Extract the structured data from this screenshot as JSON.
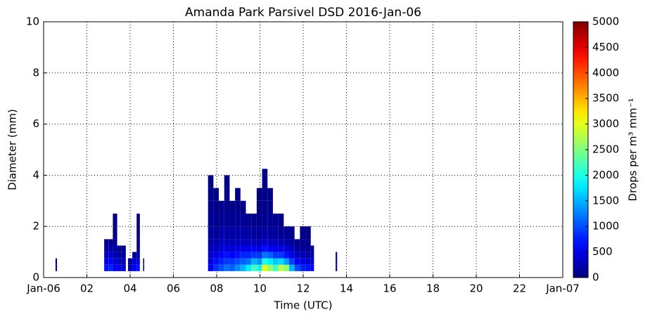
{
  "chart_data": {
    "type": "heatmap",
    "title": "Amanda Park Parsivel DSD 2016-Jan-06",
    "x_label": "Time (UTC)",
    "y_label": "Diameter (mm)",
    "colorbar_label": "Drops per m³ mm⁻¹",
    "xlim": [
      0,
      24
    ],
    "xticks": [
      {
        "value": 0,
        "label": "Jan-06"
      },
      {
        "value": 2,
        "label": "02"
      },
      {
        "value": 4,
        "label": "04"
      },
      {
        "value": 6,
        "label": "06"
      },
      {
        "value": 8,
        "label": "08"
      },
      {
        "value": 10,
        "label": "10"
      },
      {
        "value": 12,
        "label": "12"
      },
      {
        "value": 14,
        "label": "14"
      },
      {
        "value": 16,
        "label": "16"
      },
      {
        "value": 18,
        "label": "18"
      },
      {
        "value": 20,
        "label": "20"
      },
      {
        "value": 22,
        "label": "22"
      },
      {
        "value": 24,
        "label": "Jan-07"
      }
    ],
    "ylim": [
      0,
      10
    ],
    "yticks": [
      0,
      2,
      4,
      6,
      8,
      10
    ],
    "clim": [
      0,
      5000
    ],
    "cticks": [
      0,
      500,
      1000,
      1500,
      2000,
      2500,
      3000,
      3500,
      4000,
      4500,
      5000
    ],
    "colormap": "jet",
    "grid": true,
    "y_bins": [
      0.25,
      0.5,
      0.75,
      1,
      1.25,
      1.5,
      2,
      2.5,
      3,
      3.5,
      4,
      4.25
    ],
    "columns": [
      {
        "start": 0.55,
        "end": 0.62,
        "values": [
          150,
          60,
          null,
          null,
          null,
          null,
          null,
          null,
          null,
          null,
          null
        ]
      },
      {
        "start": 2.8,
        "end": 3.0,
        "values": [
          700,
          500,
          300,
          150,
          60,
          null,
          null,
          null,
          null,
          null,
          null
        ]
      },
      {
        "start": 3.0,
        "end": 3.2,
        "values": [
          800,
          600,
          400,
          200,
          80,
          null,
          null,
          null,
          null,
          null,
          null
        ]
      },
      {
        "start": 3.2,
        "end": 3.4,
        "values": [
          600,
          400,
          250,
          150,
          80,
          50,
          40,
          null,
          null,
          null,
          null
        ]
      },
      {
        "start": 3.4,
        "end": 3.6,
        "values": [
          500,
          300,
          150,
          80,
          null,
          null,
          null,
          null,
          null,
          null,
          null
        ]
      },
      {
        "start": 3.6,
        "end": 3.8,
        "values": [
          400,
          300,
          150,
          60,
          null,
          null,
          null,
          null,
          null,
          null,
          null
        ]
      },
      {
        "start": 3.9,
        "end": 4.1,
        "values": [
          300,
          150,
          null,
          null,
          null,
          null,
          null,
          null,
          null,
          null,
          null
        ]
      },
      {
        "start": 4.1,
        "end": 4.3,
        "values": [
          600,
          400,
          100,
          null,
          null,
          null,
          null,
          null,
          null,
          null,
          null
        ]
      },
      {
        "start": 4.3,
        "end": 4.45,
        "values": [
          700,
          500,
          200,
          100,
          60,
          40,
          30,
          null,
          null,
          null,
          null
        ]
      },
      {
        "start": 4.6,
        "end": 4.65,
        "values": [
          100,
          40,
          null,
          null,
          null,
          null,
          null,
          null,
          null,
          null,
          null
        ]
      },
      {
        "start": 7.6,
        "end": 7.85,
        "values": [
          600,
          500,
          400,
          300,
          200,
          150,
          100,
          60,
          40,
          30,
          null
        ]
      },
      {
        "start": 7.85,
        "end": 8.1,
        "values": [
          900,
          700,
          500,
          350,
          250,
          150,
          100,
          60,
          40,
          null,
          null
        ]
      },
      {
        "start": 8.1,
        "end": 8.35,
        "values": [
          1000,
          800,
          600,
          400,
          300,
          200,
          100,
          50,
          null,
          null,
          null
        ]
      },
      {
        "start": 8.35,
        "end": 8.6,
        "values": [
          1200,
          900,
          700,
          500,
          300,
          200,
          100,
          60,
          40,
          30,
          null
        ]
      },
      {
        "start": 8.6,
        "end": 8.85,
        "values": [
          1100,
          900,
          600,
          400,
          300,
          200,
          100,
          50,
          null,
          null,
          null
        ]
      },
      {
        "start": 8.85,
        "end": 9.1,
        "values": [
          1300,
          1000,
          700,
          500,
          300,
          200,
          100,
          50,
          30,
          null,
          null
        ]
      },
      {
        "start": 9.1,
        "end": 9.35,
        "values": [
          1500,
          1100,
          800,
          500,
          300,
          200,
          100,
          40,
          null,
          null,
          null
        ]
      },
      {
        "start": 9.35,
        "end": 9.6,
        "values": [
          1800,
          1200,
          800,
          500,
          300,
          200,
          80,
          null,
          null,
          null,
          null
        ]
      },
      {
        "start": 9.6,
        "end": 9.85,
        "values": [
          2200,
          1500,
          900,
          600,
          300,
          150,
          60,
          null,
          null,
          null,
          null
        ]
      },
      {
        "start": 9.85,
        "end": 10.1,
        "values": [
          2000,
          1400,
          900,
          500,
          300,
          150,
          80,
          40,
          30,
          null,
          null
        ]
      },
      {
        "start": 10.1,
        "end": 10.35,
        "values": [
          3000,
          2000,
          1200,
          700,
          400,
          200,
          100,
          60,
          40,
          30,
          20
        ]
      },
      {
        "start": 10.35,
        "end": 10.6,
        "values": [
          2600,
          1800,
          1100,
          600,
          300,
          150,
          80,
          40,
          30,
          null,
          null
        ]
      },
      {
        "start": 10.6,
        "end": 10.85,
        "values": [
          2200,
          1600,
          900,
          500,
          300,
          150,
          80,
          null,
          null,
          null,
          null
        ]
      },
      {
        "start": 10.85,
        "end": 11.1,
        "values": [
          2800,
          1700,
          900,
          500,
          250,
          100,
          50,
          null,
          null,
          null,
          null
        ]
      },
      {
        "start": 11.1,
        "end": 11.35,
        "values": [
          2600,
          1400,
          700,
          400,
          200,
          80,
          null,
          null,
          null,
          null,
          null
        ]
      },
      {
        "start": 11.35,
        "end": 11.6,
        "values": [
          1500,
          900,
          500,
          300,
          150,
          60,
          null,
          null,
          null,
          null,
          null
        ]
      },
      {
        "start": 11.6,
        "end": 11.85,
        "values": [
          1000,
          600,
          300,
          150,
          60,
          null,
          null,
          null,
          null,
          null,
          null
        ]
      },
      {
        "start": 11.85,
        "end": 12.1,
        "values": [
          800,
          500,
          300,
          150,
          80,
          40,
          null,
          null,
          null,
          null,
          null
        ]
      },
      {
        "start": 12.1,
        "end": 12.35,
        "values": [
          700,
          400,
          200,
          100,
          60,
          30,
          null,
          null,
          null,
          null,
          null
        ]
      },
      {
        "start": 12.35,
        "end": 12.5,
        "values": [
          600,
          300,
          150,
          80,
          null,
          null,
          null,
          null,
          null,
          null,
          null
        ]
      },
      {
        "start": 13.5,
        "end": 13.57,
        "values": [
          150,
          80,
          40,
          null,
          null,
          null,
          null,
          null,
          null,
          null,
          null
        ]
      }
    ]
  }
}
